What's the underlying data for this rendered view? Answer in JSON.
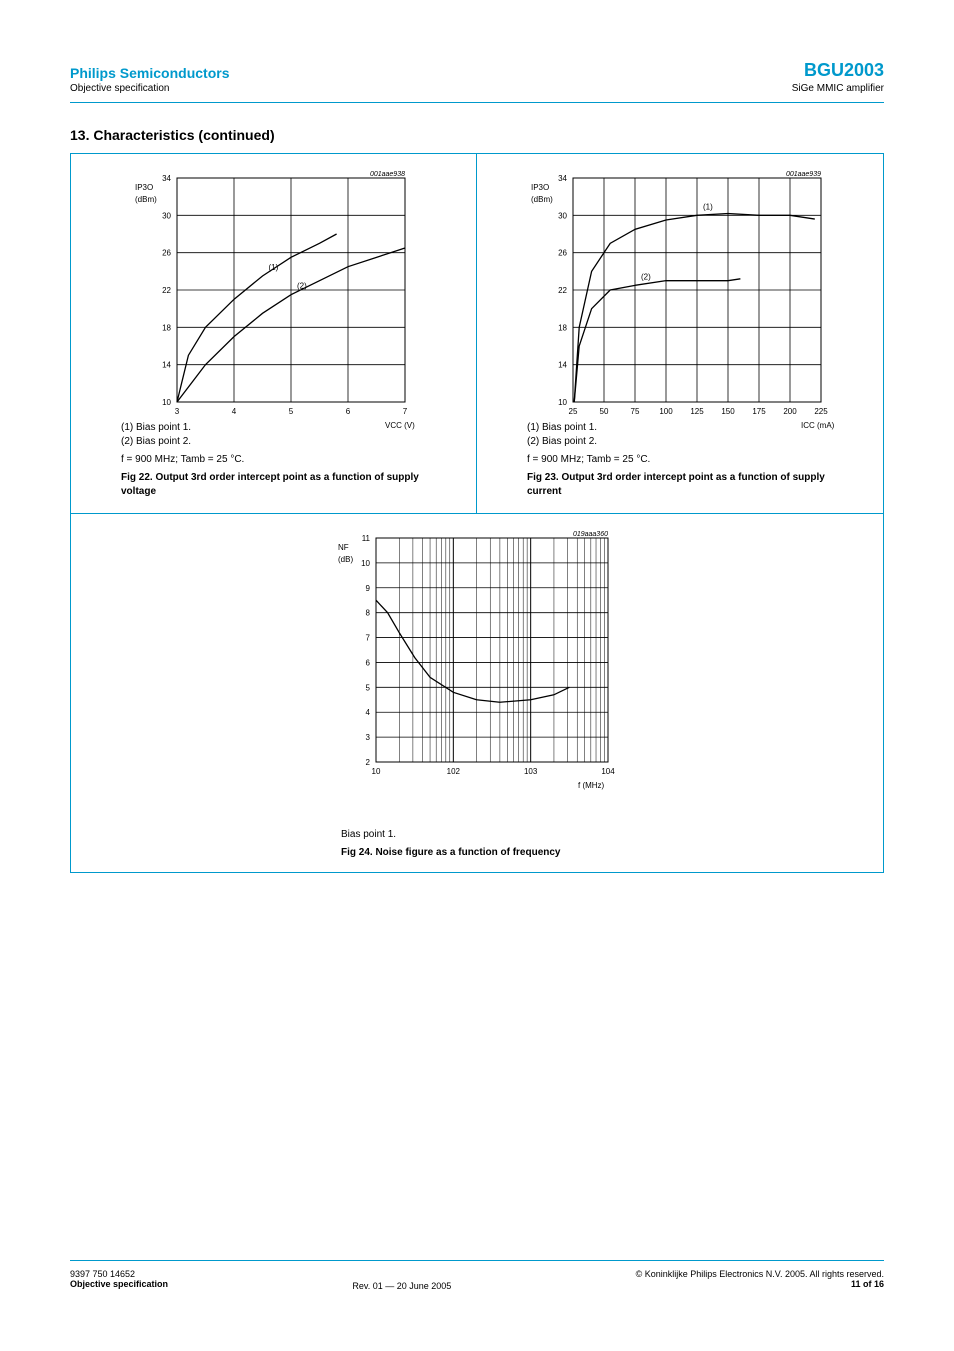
{
  "header": {
    "company": "Philips Semiconductors",
    "doc_type": "Objective specification",
    "product": "BGU2003",
    "product_desc": "SiGe MMIC amplifier"
  },
  "section": {
    "title": "13. Characteristics (continued)"
  },
  "footer": {
    "docid": "9397 750 14652",
    "copyright": "© Koninklijke Philips Electronics N.V. 2005. All rights reserved.",
    "spec": "Objective specification",
    "rev": "Rev. 01 — 20 June 2005",
    "page": "11 of 16"
  },
  "fig22": {
    "title": "Fig 22. Output 3rd order intercept point as a function of supply voltage",
    "legend": {
      "a": "(1) Bias point 1.",
      "b": "(2) Bias point 2."
    },
    "conditions": "f = 900 MHz; Tamb = 25 °C.",
    "graph_id": "001aae938",
    "xlabel": "VCC (V)",
    "ylabel": "IP3O (dBm)",
    "xmin": 2.5,
    "xmax": 6.5,
    "xtick": 1.0,
    "ymin": 10,
    "ymax": 34,
    "ytick": 4,
    "grid_color": "#000000",
    "line_color": "#000000",
    "background": "#ffffff",
    "series": [
      {
        "label": "(1)",
        "points": [
          [
            2.5,
            10
          ],
          [
            2.7,
            15
          ],
          [
            3.0,
            18
          ],
          [
            3.5,
            21
          ],
          [
            4.0,
            23.5
          ],
          [
            4.5,
            25.5
          ],
          [
            5.0,
            27
          ],
          [
            5.3,
            28
          ]
        ]
      },
      {
        "label": "(2)",
        "points": [
          [
            2.5,
            10
          ],
          [
            3.0,
            14
          ],
          [
            3.5,
            17
          ],
          [
            4.0,
            19.5
          ],
          [
            4.5,
            21.5
          ],
          [
            5.0,
            23
          ],
          [
            5.5,
            24.5
          ],
          [
            6.0,
            25.5
          ],
          [
            6.5,
            26.5
          ]
        ]
      }
    ]
  },
  "fig23": {
    "title": "Fig 23. Output 3rd order intercept point as a function of supply current",
    "legend": {
      "a": "(1) Bias point 1.",
      "b": "(2) Bias point 2."
    },
    "conditions": "f = 900 MHz; Tamb = 25 °C.",
    "graph_id": "001aae939",
    "xlabel": "ICC (mA)",
    "ylabel": "IP3O (dBm)",
    "xmin": 25,
    "xmax": 225,
    "xtick": 25,
    "ymin": 10,
    "ymax": 34,
    "ytick": 4,
    "grid_color": "#000000",
    "line_color": "#000000",
    "background": "#ffffff",
    "series": [
      {
        "label": "(1)",
        "points": [
          [
            26,
            10
          ],
          [
            30,
            18
          ],
          [
            40,
            24
          ],
          [
            55,
            27
          ],
          [
            75,
            28.5
          ],
          [
            100,
            29.5
          ],
          [
            125,
            30
          ],
          [
            150,
            30.2
          ],
          [
            175,
            30
          ],
          [
            200,
            30
          ],
          [
            220,
            29.6
          ]
        ]
      },
      {
        "label": "(2)",
        "points": [
          [
            26,
            10
          ],
          [
            30,
            16
          ],
          [
            40,
            20
          ],
          [
            55,
            22
          ],
          [
            75,
            22.5
          ],
          [
            100,
            23
          ],
          [
            125,
            23
          ],
          [
            150,
            23
          ],
          [
            160,
            23.2
          ]
        ]
      }
    ]
  },
  "fig24": {
    "title": "Fig 24. Noise figure as a function of frequency",
    "legend": "Bias point 1.",
    "graph_id": "019aaa360",
    "xlabel": "f (MHz)",
    "ylabel": "NF (dB)",
    "xmin_exp": 1,
    "xmax_exp": 4,
    "ymin": 2,
    "ymax": 11,
    "ytick": 1,
    "grid_color": "#000000",
    "line_color": "#000000",
    "background": "#ffffff",
    "series": [
      {
        "points": [
          [
            1.0,
            8.5
          ],
          [
            1.15,
            8.0
          ],
          [
            1.3,
            7.2
          ],
          [
            1.5,
            6.2
          ],
          [
            1.7,
            5.4
          ],
          [
            2.0,
            4.8
          ],
          [
            2.3,
            4.5
          ],
          [
            2.6,
            4.4
          ],
          [
            3.0,
            4.5
          ],
          [
            3.3,
            4.7
          ],
          [
            3.5,
            5.0
          ]
        ]
      }
    ]
  },
  "style": {
    "accent": "#0099cc",
    "axis_fontsize": 8,
    "caption_fontsize": 10
  }
}
